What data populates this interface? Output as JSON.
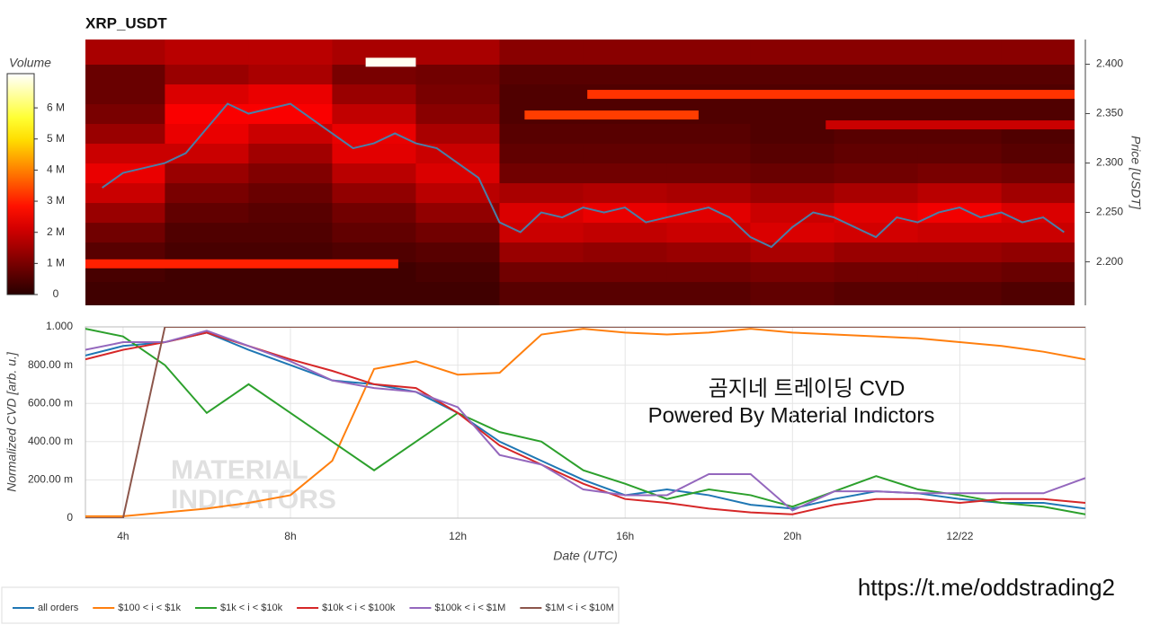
{
  "chart_data": [
    {
      "type": "heatmap",
      "title": "XRP_USDT",
      "y_label": "Price [USDT]",
      "colorbar_label": "Volume",
      "xlim": [
        3.1,
        26.75
      ],
      "ylim": [
        2.156,
        2.425
      ],
      "yticks": [
        {
          "value": 2.2,
          "label": "2.200"
        },
        {
          "value": 2.25,
          "label": "2.250"
        },
        {
          "value": 2.3,
          "label": "2.300"
        },
        {
          "value": 2.35,
          "label": "2.350"
        },
        {
          "value": 2.4,
          "label": "2.400"
        }
      ],
      "clim": [
        0,
        7.1
      ],
      "cticks": [
        0,
        {
          "value": 1,
          "label": "1 M"
        },
        {
          "value": 2,
          "label": "2 M"
        },
        {
          "value": 3,
          "label": "3 M"
        },
        {
          "value": 4,
          "label": "4 M"
        },
        {
          "value": 5,
          "label": "5 M"
        },
        {
          "value": 6,
          "label": "6 M"
        }
      ],
      "x_bins": [
        3.1,
        5,
        7,
        9,
        11,
        13,
        15,
        17,
        19,
        21,
        23,
        25,
        26.75
      ],
      "y_bins": [
        2.156,
        2.18,
        2.2,
        2.22,
        2.24,
        2.26,
        2.28,
        2.3,
        2.32,
        2.34,
        2.36,
        2.38,
        2.4,
        2.425
      ],
      "z": [
        [
          0.3,
          0.3,
          0.3,
          0.3,
          0.3,
          0.6,
          0.6,
          0.6,
          0.7,
          0.6,
          0.6,
          0.5
        ],
        [
          0.4,
          0.3,
          0.3,
          0.3,
          0.4,
          0.9,
          0.9,
          0.9,
          1.0,
          0.9,
          0.9,
          0.8
        ],
        [
          0.6,
          0.4,
          0.4,
          0.5,
          0.6,
          1.4,
          1.3,
          1.4,
          1.6,
          1.4,
          1.4,
          1.3
        ],
        [
          0.9,
          0.5,
          0.5,
          0.7,
          0.9,
          2.0,
          1.9,
          2.0,
          2.2,
          2.1,
          2.0,
          2.0
        ],
        [
          1.4,
          0.7,
          0.6,
          0.9,
          1.3,
          2.2,
          2.4,
          2.3,
          2.0,
          2.3,
          2.5,
          2.2
        ],
        [
          2.0,
          1.0,
          0.8,
          1.3,
          1.8,
          1.6,
          1.7,
          1.6,
          1.4,
          1.6,
          1.8,
          1.5
        ],
        [
          2.4,
          1.4,
          1.1,
          1.8,
          2.2,
          0.9,
          0.9,
          0.9,
          0.8,
          0.9,
          1.0,
          0.9
        ],
        [
          2.0,
          2.0,
          1.5,
          2.3,
          2.0,
          0.7,
          0.7,
          0.7,
          0.6,
          0.7,
          0.7,
          0.6
        ],
        [
          1.4,
          2.4,
          2.0,
          2.4,
          1.6,
          0.6,
          0.6,
          0.6,
          0.5,
          0.6,
          0.6,
          0.5
        ],
        [
          1.0,
          2.6,
          2.6,
          1.9,
          1.2,
          0.5,
          0.5,
          0.5,
          0.5,
          0.5,
          0.5,
          0.5
        ],
        [
          0.8,
          2.2,
          2.4,
          1.4,
          1.0,
          0.5,
          0.5,
          0.5,
          0.5,
          0.5,
          0.5,
          0.5
        ],
        [
          0.8,
          1.4,
          1.6,
          1.0,
          0.9,
          0.6,
          0.6,
          0.6,
          0.6,
          0.6,
          0.6,
          0.6
        ],
        [
          1.6,
          1.8,
          1.8,
          1.6,
          1.6,
          1.2,
          1.2,
          1.2,
          1.2,
          1.2,
          1.2,
          1.2
        ]
      ],
      "walls": [
        {
          "x": [
            9.8,
            11
          ],
          "price": 2.402,
          "volume": 7.0
        },
        {
          "x": [
            3.1,
            10.58
          ],
          "price": 2.198,
          "volume": 3.0
        },
        {
          "x": [
            15.1,
            26.75
          ],
          "price": 2.3695,
          "volume": 3.2
        },
        {
          "x": [
            13.6,
            17.76
          ],
          "price": 2.3486,
          "volume": 3.3
        },
        {
          "x": [
            20.8,
            26.75
          ],
          "price": 2.3386,
          "volume": 2.0
        }
      ],
      "price": {
        "color": "#4a7fa8",
        "x": [
          3.5,
          4,
          4.5,
          5,
          5.5,
          6,
          6.5,
          7,
          7.5,
          8,
          8.5,
          9,
          9.5,
          10,
          10.5,
          11,
          11.5,
          12,
          12.5,
          13,
          13.5,
          14,
          14.5,
          15,
          15.5,
          16,
          16.5,
          17,
          17.5,
          18,
          18.5,
          19,
          19.5,
          20,
          20.5,
          21,
          21.5,
          22,
          22.5,
          23,
          23.5,
          24,
          24.5,
          25,
          25.5,
          26,
          26.5
        ],
        "values": [
          2.275,
          2.29,
          2.295,
          2.3,
          2.31,
          2.335,
          2.36,
          2.35,
          2.355,
          2.36,
          2.345,
          2.33,
          2.315,
          2.32,
          2.33,
          2.32,
          2.315,
          2.3,
          2.285,
          2.24,
          2.23,
          2.25,
          2.245,
          2.255,
          2.25,
          2.255,
          2.24,
          2.245,
          2.25,
          2.255,
          2.245,
          2.225,
          2.215,
          2.235,
          2.25,
          2.245,
          2.235,
          2.225,
          2.245,
          2.24,
          2.25,
          2.255,
          2.245,
          2.25,
          2.24,
          2.245,
          2.23
        ]
      }
    },
    {
      "type": "line",
      "x_label": "Date (UTC)",
      "y_label": "Normalized CVD [arb. u.]",
      "grid": true,
      "xlim": [
        3.1,
        27
      ],
      "ylim": [
        0,
        1
      ],
      "xticks": [
        {
          "value": 4,
          "label": "4h"
        },
        {
          "value": 8,
          "label": "8h"
        },
        {
          "value": 12,
          "label": "12h"
        },
        {
          "value": 16,
          "label": "16h"
        },
        {
          "value": 20,
          "label": "20h"
        },
        {
          "value": 24,
          "label": "12/22"
        }
      ],
      "yticks": [
        0,
        {
          "value": 0.2,
          "label": "200.00 m"
        },
        {
          "value": 0.4,
          "label": "400.00 m"
        },
        {
          "value": 0.6,
          "label": "600.00 m"
        },
        {
          "value": 0.8,
          "label": "800.00 m"
        },
        {
          "value": 1,
          "label": "1.000"
        }
      ],
      "x": [
        3.1,
        4,
        5,
        6,
        7,
        8,
        9,
        10,
        11,
        12,
        13,
        14,
        15,
        16,
        17,
        18,
        19,
        20,
        21,
        22,
        23,
        24,
        25,
        26,
        27
      ],
      "series": [
        {
          "name": "all orders",
          "color": "#1f77b4",
          "values": [
            0.85,
            0.9,
            0.92,
            0.97,
            0.88,
            0.8,
            0.72,
            0.7,
            0.66,
            0.55,
            0.4,
            0.3,
            0.2,
            0.12,
            0.15,
            0.12,
            0.07,
            0.05,
            0.1,
            0.14,
            0.13,
            0.1,
            0.08,
            0.08,
            0.05
          ]
        },
        {
          "name": "$100 < i < $1k",
          "color": "#ff7f0e",
          "values": [
            0.01,
            0.01,
            0.03,
            0.05,
            0.08,
            0.12,
            0.3,
            0.78,
            0.82,
            0.75,
            0.76,
            0.96,
            0.99,
            0.97,
            0.96,
            0.97,
            0.99,
            0.97,
            0.96,
            0.95,
            0.94,
            0.92,
            0.9,
            0.87,
            0.83
          ]
        },
        {
          "name": "$1k < i < $10k",
          "color": "#2ca02c",
          "values": [
            0.99,
            0.95,
            0.8,
            0.55,
            0.7,
            0.55,
            0.4,
            0.25,
            0.4,
            0.55,
            0.45,
            0.4,
            0.25,
            0.18,
            0.1,
            0.15,
            0.12,
            0.06,
            0.14,
            0.22,
            0.15,
            0.12,
            0.08,
            0.06,
            0.02
          ]
        },
        {
          "name": "$10k < i < $100k",
          "color": "#d62728",
          "values": [
            0.83,
            0.88,
            0.92,
            0.97,
            0.9,
            0.83,
            0.77,
            0.7,
            0.68,
            0.55,
            0.38,
            0.28,
            0.18,
            0.1,
            0.08,
            0.05,
            0.03,
            0.02,
            0.07,
            0.1,
            0.1,
            0.08,
            0.1,
            0.1,
            0.08
          ]
        },
        {
          "name": "$100k < i < $1M",
          "color": "#9467bd",
          "values": [
            0.88,
            0.92,
            0.92,
            0.98,
            0.9,
            0.82,
            0.72,
            0.68,
            0.66,
            0.58,
            0.33,
            0.28,
            0.15,
            0.12,
            0.12,
            0.23,
            0.23,
            0.04,
            0.14,
            0.14,
            0.13,
            0.13,
            0.13,
            0.13,
            0.21
          ]
        },
        {
          "name": "$1M < i < $10M",
          "color": "#8c564b",
          "values": [
            0,
            0,
            1,
            1,
            1,
            1,
            1,
            1,
            1,
            1,
            1,
            1,
            1,
            1,
            1,
            1,
            1,
            1,
            1,
            1,
            1,
            1,
            1,
            1,
            1
          ]
        }
      ],
      "annotations": [
        "곰지네 트레이딩 CVD",
        "Powered By Material Indictors"
      ],
      "watermark": [
        "MATERIAL",
        "INDICATORS"
      ],
      "link": "https://t.me/oddstrading2"
    }
  ]
}
